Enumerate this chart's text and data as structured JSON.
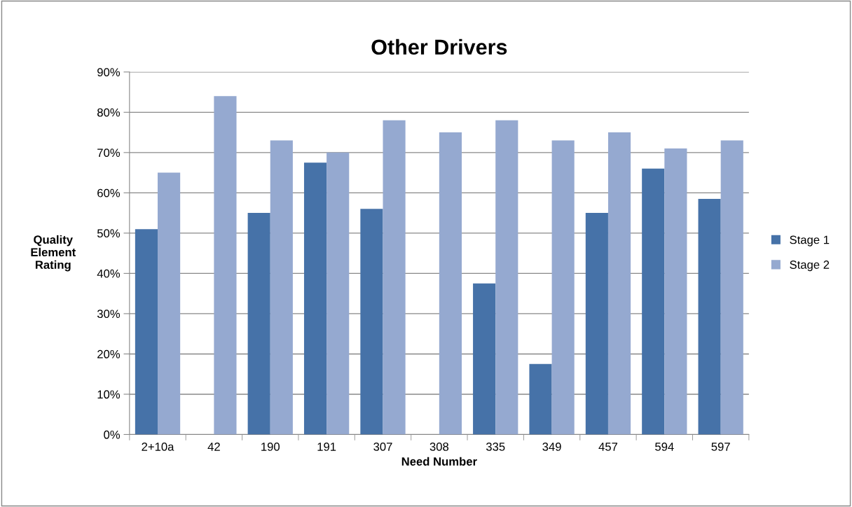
{
  "chart_data": {
    "type": "bar",
    "title": "Other Drivers",
    "xlabel": "Need Number",
    "ylabel": "Quality\nElement\nRating",
    "categories": [
      "2+10a",
      "42",
      "190",
      "191",
      "307",
      "308",
      "335",
      "349",
      "457",
      "594",
      "597"
    ],
    "series": [
      {
        "name": "Stage 1",
        "color": "#4672a8",
        "values": [
          51,
          null,
          55,
          67.5,
          56,
          null,
          37.5,
          17.5,
          55,
          66,
          58.5
        ]
      },
      {
        "name": "Stage 2",
        "color": "#95a9d0",
        "values": [
          65,
          84,
          73,
          70,
          78,
          75,
          78,
          73,
          75,
          71,
          73
        ]
      }
    ],
    "ylim": [
      0,
      90
    ],
    "yticks": [
      {
        "value": 0,
        "label": "0%"
      },
      {
        "value": 10,
        "label": "10%"
      },
      {
        "value": 20,
        "label": "20%"
      },
      {
        "value": 30,
        "label": "30%"
      },
      {
        "value": 40,
        "label": "40%"
      },
      {
        "value": 50,
        "label": "50%"
      },
      {
        "value": 60,
        "label": "60%"
      },
      {
        "value": 70,
        "label": "70%"
      },
      {
        "value": 80,
        "label": "80%"
      },
      {
        "value": 90,
        "label": "90%"
      }
    ],
    "grid": "y",
    "legend": "right"
  }
}
